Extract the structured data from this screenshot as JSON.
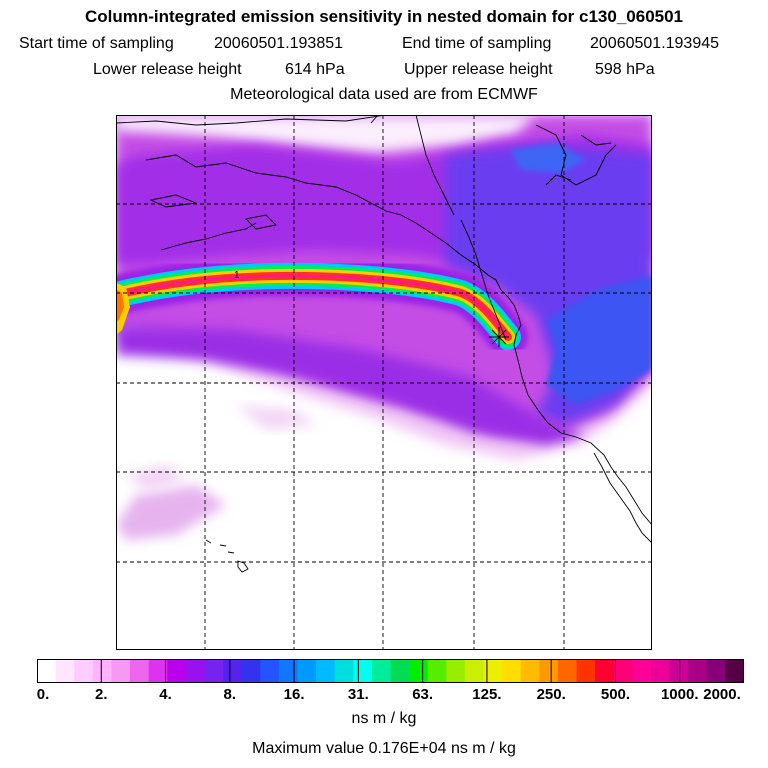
{
  "header": {
    "title": "Column-integrated emission sensitivity in nested domain for c130_060501",
    "start_label": "Start time of sampling",
    "start_value": "20060501.193851",
    "end_label": "End time of sampling",
    "end_value": "20060501.193945",
    "lower_label": "Lower release height",
    "lower_value": "614 hPa",
    "upper_label": "Upper release height",
    "upper_value": "598 hPa",
    "met_note": "Meteorological data used are from ECMWF"
  },
  "map": {
    "contour_label": "1",
    "release_marker": "release-point-star"
  },
  "colorbar": {
    "colors": [
      "#ffffff",
      "#ffe6ff",
      "#ffccff",
      "#ffb3ff",
      "#f599f5",
      "#ee66ee",
      "#dd33ee",
      "#bb00ee",
      "#9911ee",
      "#7722ee",
      "#5522ee",
      "#3333ee",
      "#2255ff",
      "#1177ff",
      "#0099ff",
      "#00bbff",
      "#00dddd",
      "#00ffee",
      "#00ee99",
      "#00dd55",
      "#00ee00",
      "#55ee00",
      "#99ee00",
      "#ccee00",
      "#eeee00",
      "#ffdd00",
      "#ffbb00",
      "#ff9900",
      "#ff6600",
      "#ff3300",
      "#ff0033",
      "#ff0077",
      "#ff0099",
      "#ee0099",
      "#cc0099",
      "#aa0088",
      "#880077",
      "#550044"
    ],
    "labels": [
      "0.",
      "2.",
      "4.",
      "8.",
      "16.",
      "31.",
      "63.",
      "125.",
      "250.",
      "500.",
      "1000.",
      "2000."
    ],
    "unit": "ns m / kg"
  },
  "footer": {
    "max_label": "Maximum value",
    "max_value": "0.176E+04 ns m / kg"
  }
}
